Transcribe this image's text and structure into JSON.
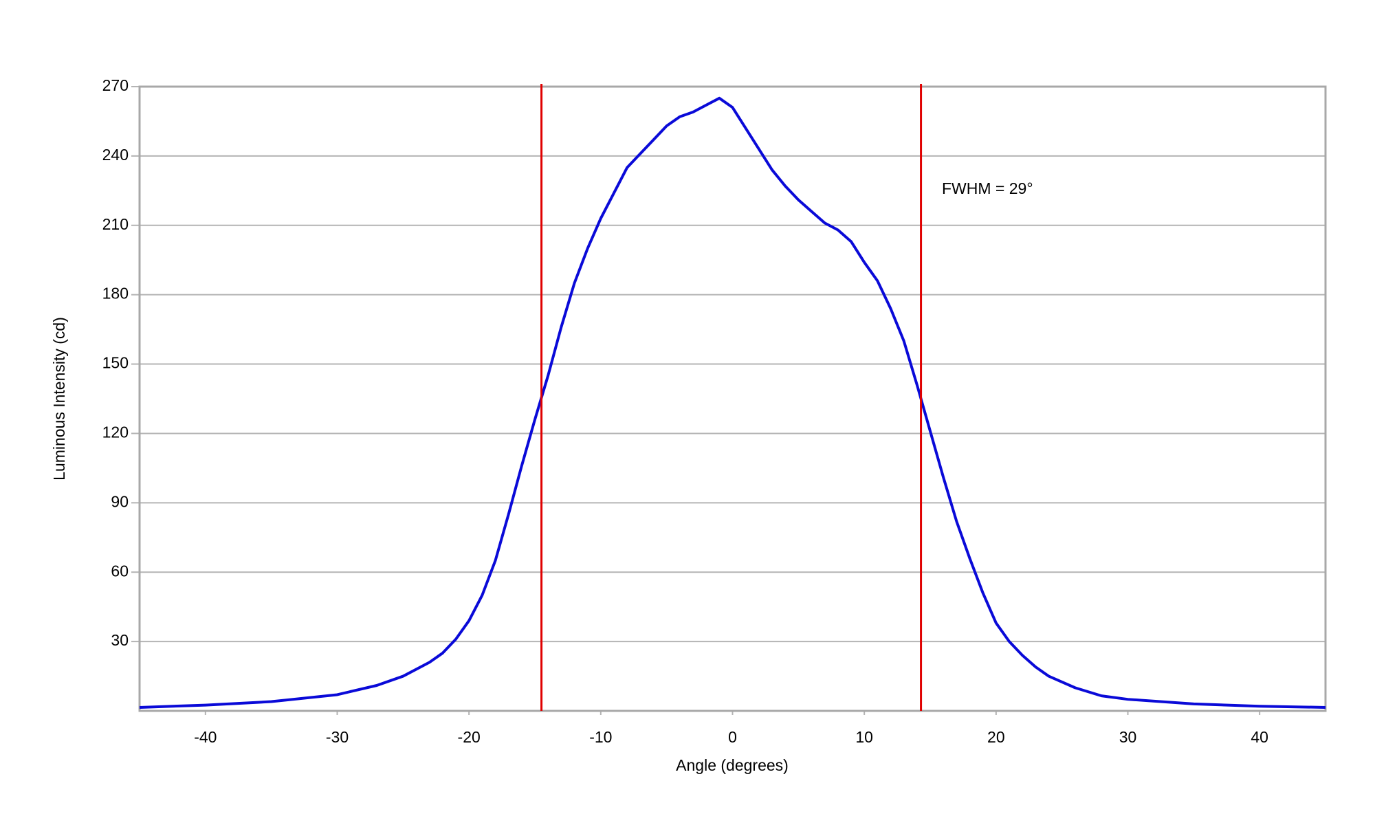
{
  "chart_data": {
    "type": "line",
    "xlabel": "Angle (degrees)",
    "ylabel": "Luminous Intensity (cd)",
    "annotation": "FWHM = 29°",
    "x": [
      -45,
      -40,
      -35,
      -30,
      -27,
      -25,
      -23,
      -22,
      -21,
      -20,
      -19,
      -18,
      -17,
      -16,
      -15,
      -14,
      -13,
      -12,
      -11,
      -10,
      -9,
      -8,
      -7,
      -6,
      -5,
      -4,
      -3,
      -2,
      -1,
      0,
      1,
      2,
      3,
      4,
      5,
      6,
      7,
      8,
      9,
      10,
      11,
      12,
      13,
      14,
      15,
      16,
      17,
      18,
      19,
      20,
      21,
      22,
      23,
      24,
      26,
      28,
      30,
      35,
      40,
      45
    ],
    "series": [
      {
        "color": "#0a0ad8",
        "values": [
          1.5,
          2.5,
          4,
          7,
          11,
          15,
          21,
          25,
          31,
          39,
          50,
          65,
          85,
          106,
          126,
          145,
          166,
          185,
          200,
          213,
          224,
          235,
          241,
          247,
          253,
          257,
          259,
          262,
          265,
          261,
          252,
          243,
          234,
          227,
          221,
          216,
          211,
          208,
          203,
          194,
          186,
          174,
          160,
          141,
          121,
          101,
          82,
          66,
          51,
          38,
          30,
          24,
          19,
          15,
          10,
          6.5,
          5,
          3,
          2,
          1.5
        ]
      }
    ],
    "vlines": [
      -14.5,
      14.3
    ],
    "vline_color": "#e00000",
    "xlim": [
      -45,
      45
    ],
    "ylim": [
      0,
      270
    ],
    "xticks": [
      -40,
      -30,
      -20,
      -10,
      0,
      10,
      20,
      30,
      40
    ],
    "yticks": [
      30,
      60,
      90,
      120,
      150,
      180,
      210,
      240,
      270
    ],
    "grid": true
  }
}
